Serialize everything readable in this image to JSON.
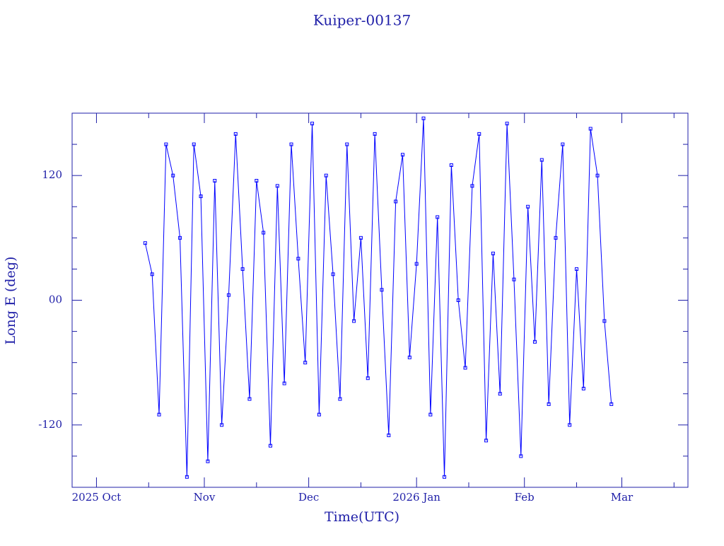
{
  "chart_data": {
    "type": "line",
    "title": "Kuiper-00137",
    "xlabel": "Time(UTC)",
    "ylabel": "Long E (deg)",
    "color": "#0000ff",
    "marker": "square",
    "xlim": [
      -7,
      170
    ],
    "xticks": [
      {
        "value": 0,
        "label": "2025 Oct"
      },
      {
        "value": 31,
        "label": "Nov"
      },
      {
        "value": 61,
        "label": "Dec"
      },
      {
        "value": 92,
        "label": "2026 Jan"
      },
      {
        "value": 123,
        "label": "Feb"
      },
      {
        "value": 151,
        "label": "Mar"
      }
    ],
    "xminorticks": [
      15,
      46,
      76,
      107,
      138,
      166
    ],
    "ylim": [
      -180,
      180
    ],
    "yticks": [
      -120,
      {
        "value": 0,
        "label": "00"
      },
      120
    ],
    "yminorticks": [
      -150,
      -90,
      -60,
      -30,
      30,
      60,
      90,
      150
    ],
    "x": [
      14,
      16,
      18,
      20,
      22,
      24,
      26,
      28,
      30,
      32,
      34,
      36,
      38,
      40,
      42,
      44,
      46,
      48,
      50,
      52,
      54,
      56,
      58,
      60,
      62,
      64,
      66,
      68,
      70,
      72,
      74,
      76,
      78,
      80,
      82,
      84,
      86,
      88,
      90,
      92,
      94,
      96,
      98,
      100,
      102,
      104,
      106,
      108,
      110,
      112,
      114,
      116,
      118,
      120,
      122,
      124,
      126,
      128,
      130,
      132,
      134,
      136,
      138,
      140,
      142,
      144,
      146,
      148
    ],
    "values": [
      55,
      25,
      -110,
      150,
      120,
      60,
      -170,
      150,
      100,
      -155,
      115,
      -120,
      5,
      160,
      30,
      -95,
      115,
      65,
      -140,
      110,
      -80,
      150,
      40,
      -60,
      170,
      -110,
      120,
      25,
      -95,
      150,
      -20,
      60,
      -75,
      160,
      10,
      -130,
      95,
      140,
      -55,
      35,
      175,
      -110,
      80,
      -170,
      130,
      0,
      -65,
      110,
      160,
      -135,
      45,
      -90,
      170,
      20,
      -150,
      90,
      -40,
      135,
      -100,
      60,
      150,
      -120,
      30,
      -85,
      165,
      120,
      -20,
      -100
    ]
  }
}
